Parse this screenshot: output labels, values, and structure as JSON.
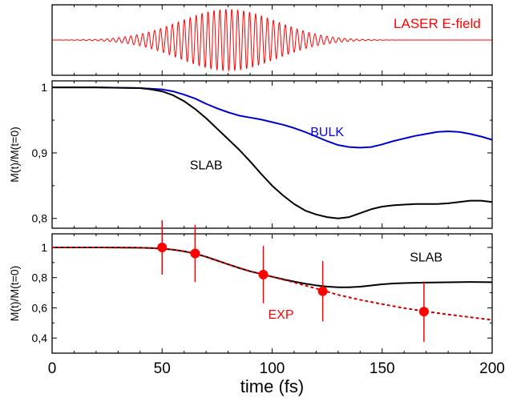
{
  "chart_data": [
    {
      "type": "line",
      "panel": "laser",
      "xlim": [
        0,
        200
      ],
      "grid": false,
      "annotations": [
        {
          "text": "LASER E-field",
          "color": "#ff0000",
          "x": 175,
          "y": 0.55
        }
      ],
      "series": [
        {
          "name": "LASER E-field",
          "color": "#ff0000",
          "kind": "gaussian-oscillation",
          "center": 80,
          "sigma": 22,
          "period": 2.7,
          "amplitude": 1
        }
      ]
    },
    {
      "type": "line",
      "panel": "theory",
      "ylabel": "M(t)/M(t=0)",
      "xlim": [
        0,
        200
      ],
      "ylim": [
        0.785,
        1.01
      ],
      "yticks": [
        0.8,
        0.9,
        1
      ],
      "ytick_labels": [
        "0,8",
        "0,9",
        "1"
      ],
      "grid": false,
      "annotations": [
        {
          "text": "BULK",
          "color": "#0000ff",
          "x": 125,
          "y": 0.933
        },
        {
          "text": "SLAB",
          "color": "#000000",
          "x": 70,
          "y": 0.882
        }
      ],
      "series": [
        {
          "name": "BULK",
          "color": "#0000cc",
          "x": [
            0,
            20,
            40,
            50,
            55,
            60,
            65,
            70,
            75,
            80,
            85,
            90,
            95,
            100,
            105,
            110,
            115,
            120,
            125,
            130,
            135,
            140,
            145,
            150,
            155,
            160,
            165,
            170,
            175,
            180,
            185,
            190,
            195,
            200
          ],
          "y": [
            1.0,
            1.0,
            0.999,
            0.997,
            0.994,
            0.989,
            0.983,
            0.975,
            0.968,
            0.962,
            0.957,
            0.954,
            0.951,
            0.947,
            0.943,
            0.938,
            0.932,
            0.925,
            0.918,
            0.912,
            0.909,
            0.908,
            0.909,
            0.913,
            0.918,
            0.922,
            0.926,
            0.929,
            0.932,
            0.933,
            0.932,
            0.929,
            0.925,
            0.92
          ]
        },
        {
          "name": "SLAB",
          "color": "#000000",
          "x": [
            0,
            20,
            40,
            45,
            50,
            55,
            60,
            65,
            70,
            75,
            80,
            85,
            90,
            95,
            100,
            105,
            110,
            115,
            120,
            125,
            130,
            135,
            140,
            145,
            150,
            155,
            160,
            165,
            170,
            175,
            180,
            185,
            190,
            195,
            200
          ],
          "y": [
            1.0,
            1.0,
            0.999,
            0.997,
            0.994,
            0.988,
            0.979,
            0.967,
            0.953,
            0.937,
            0.921,
            0.905,
            0.887,
            0.868,
            0.85,
            0.835,
            0.822,
            0.812,
            0.806,
            0.802,
            0.8,
            0.802,
            0.808,
            0.814,
            0.818,
            0.82,
            0.821,
            0.822,
            0.822,
            0.822,
            0.823,
            0.825,
            0.827,
            0.827,
            0.825
          ]
        }
      ]
    },
    {
      "type": "line",
      "panel": "experiment",
      "xlabel": "time (fs)",
      "ylabel": "M(t)/M(t=0)",
      "xlim": [
        0,
        200
      ],
      "ylim": [
        0.3,
        1.09
      ],
      "xticks": [
        0,
        50,
        100,
        150,
        200
      ],
      "yticks": [
        0.4,
        0.6,
        0.8,
        1
      ],
      "ytick_labels": [
        "0,4",
        "0,6",
        "0,8",
        "1"
      ],
      "grid": false,
      "annotations": [
        {
          "text": "SLAB",
          "color": "#000000",
          "x": 170,
          "y": 0.94
        },
        {
          "text": "EXP",
          "color": "#ff0000",
          "x": 104,
          "y": 0.56
        }
      ],
      "series": [
        {
          "name": "SLAB",
          "color": "#000000",
          "x": [
            0,
            20,
            40,
            45,
            50,
            55,
            60,
            65,
            70,
            75,
            80,
            85,
            90,
            95,
            100,
            105,
            110,
            115,
            120,
            125,
            130,
            135,
            140,
            145,
            150,
            155,
            160,
            170,
            180,
            190,
            200
          ],
          "y": [
            1.0,
            1.0,
            0.998,
            0.996,
            0.992,
            0.985,
            0.974,
            0.959,
            0.938,
            0.913,
            0.888,
            0.864,
            0.842,
            0.824,
            0.806,
            0.789,
            0.774,
            0.76,
            0.749,
            0.741,
            0.736,
            0.736,
            0.74,
            0.748,
            0.756,
            0.761,
            0.764,
            0.767,
            0.769,
            0.771,
            0.77
          ]
        },
        {
          "name": "EXP fit",
          "color": "#cc0000",
          "dashed": true,
          "x": [
            0,
            20,
            40,
            45,
            50,
            55,
            60,
            65,
            70,
            75,
            80,
            85,
            90,
            95,
            100,
            110,
            120,
            130,
            140,
            150,
            160,
            170,
            180,
            190,
            200
          ],
          "y": [
            1.0,
            1.0,
            0.998,
            0.996,
            0.992,
            0.985,
            0.974,
            0.959,
            0.938,
            0.913,
            0.888,
            0.864,
            0.842,
            0.824,
            0.806,
            0.768,
            0.728,
            0.686,
            0.653,
            0.625,
            0.598,
            0.576,
            0.556,
            0.538,
            0.52
          ]
        },
        {
          "name": "EXP",
          "color": "#ff0000",
          "kind": "points",
          "x": [
            50,
            65,
            96,
            123,
            169
          ],
          "y": [
            1.0,
            0.96,
            0.82,
            0.71,
            0.575
          ],
          "err": [
            0.18,
            0.19,
            0.19,
            0.2,
            0.2
          ]
        }
      ]
    }
  ]
}
